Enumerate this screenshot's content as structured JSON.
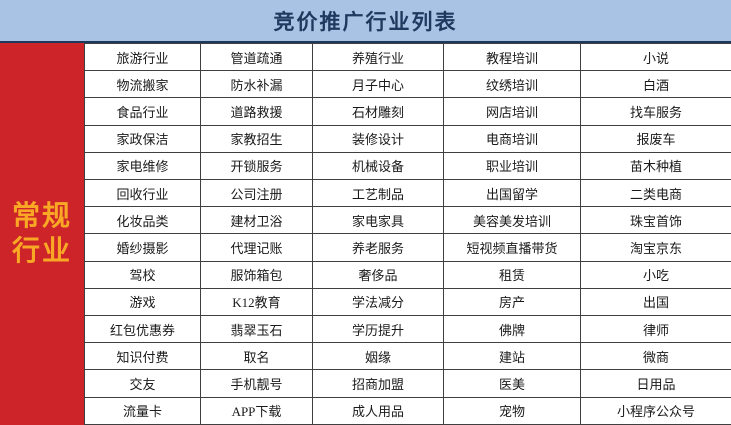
{
  "header": {
    "title": "竞价推广行业列表"
  },
  "sidebar": {
    "label": "常规行业",
    "label_line1": "常规",
    "label_line2": "行业"
  },
  "table": {
    "rows": [
      [
        "旅游行业",
        "管道疏通",
        "养殖行业",
        "教程培训",
        "小说"
      ],
      [
        "物流搬家",
        "防水补漏",
        "月子中心",
        "纹绣培训",
        "白酒"
      ],
      [
        "食品行业",
        "道路救援",
        "石材雕刻",
        "网店培训",
        "找车服务"
      ],
      [
        "家政保洁",
        "家教招生",
        "装修设计",
        "电商培训",
        "报废车"
      ],
      [
        "家电维修",
        "开锁服务",
        "机械设备",
        "职业培训",
        "苗木种植"
      ],
      [
        "回收行业",
        "公司注册",
        "工艺制品",
        "出国留学",
        "二类电商"
      ],
      [
        "化妆品类",
        "建材卫浴",
        "家电家具",
        "美容美发培训",
        "珠宝首饰"
      ],
      [
        "婚纱摄影",
        "代理记账",
        "养老服务",
        "短视频直播带货",
        "淘宝京东"
      ],
      [
        "驾校",
        "服饰箱包",
        "奢侈品",
        "租赁",
        "小吃"
      ],
      [
        "游戏",
        "K12教育",
        "学法减分",
        "房产",
        "出国"
      ],
      [
        "红包优惠券",
        "翡翠玉石",
        "学历提升",
        "佛牌",
        "律师"
      ],
      [
        "知识付费",
        "取名",
        "姻缘",
        "建站",
        "微商"
      ],
      [
        "交友",
        "手机靓号",
        "招商加盟",
        "医美",
        "日用品"
      ],
      [
        "流量卡",
        "APP下载",
        "成人用品",
        "宠物",
        "小程序公众号"
      ]
    ]
  },
  "colors": {
    "header_bg": "#a9c3e4",
    "header_text": "#1d3a5e",
    "header_line": "#1d3a5e",
    "band_bg": "#cc2428",
    "band_text": "#f9a825"
  }
}
